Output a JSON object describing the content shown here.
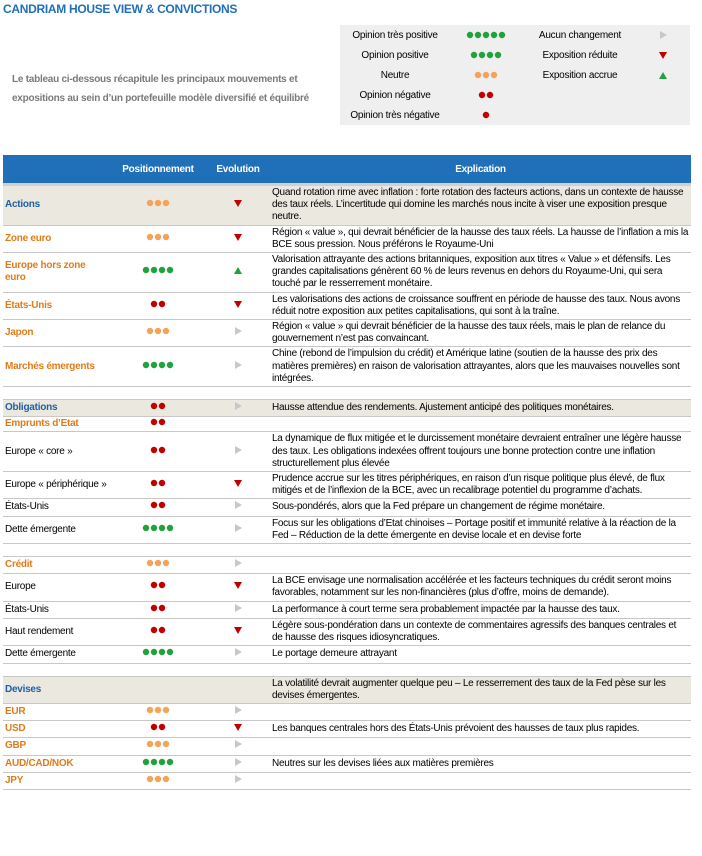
{
  "header": {
    "title": "CANDRIAM HOUSE VIEW & CONVICTIONS",
    "intro": "Le tableau ci-dessous récapitule les principaux mouvements et expositions au sein d’un portefeuille modèle diversifié et équilibré"
  },
  "legend": {
    "opinions": [
      {
        "label": "Opinion très positive",
        "dots": 5
      },
      {
        "label": "Opinion positive",
        "dots": 4
      },
      {
        "label": "Neutre",
        "dots": 3
      },
      {
        "label": "Opinion négative",
        "dots": 2
      },
      {
        "label": "Opinion très négative",
        "dots": 1
      }
    ],
    "changes": [
      {
        "label": "Aucun changement",
        "evolution": "right"
      },
      {
        "label": "Exposition réduite",
        "evolution": "down"
      },
      {
        "label": "Exposition accrue",
        "evolution": "up"
      }
    ]
  },
  "dot_colors": [
    "#c00000",
    "#c00000",
    "#f5a25a",
    "#1fa33a",
    "#1fa33a"
  ],
  "arrow_colors": {
    "right": "#c8c8c8",
    "down": "#c00000",
    "up": "#1fa33a"
  },
  "table": {
    "columns": [
      "Positionnement",
      "Evolution",
      "Explication"
    ],
    "rows": [
      {
        "kind": "section",
        "label": "Actions",
        "dots": 3,
        "evolution": "down",
        "explanation": "Quand rotation rime avec inflation : forte rotation des facteurs actions, dans un contexte de hausse des taux réels. L’incertitude qui domine les marchés nous incite à viser une exposition presque neutre."
      },
      {
        "kind": "group",
        "label": "Zone euro",
        "dots": 3,
        "evolution": "down",
        "explanation": "Région « value », qui devrait bénéficier de la hausse des taux réels. La hausse de l’inflation a mis la BCE sous pression. Nous préférons le Royaume-Uni"
      },
      {
        "kind": "group",
        "label": "Europe hors zone euro",
        "dots": 4,
        "evolution": "up",
        "explanation": "Valorisation attrayante des actions britanniques, exposition aux titres « Value » et défensifs. Les grandes capitalisations génèrent 60 % de leurs revenus en dehors du Royaume-Uni, qui sera touché par le resserrement monétaire."
      },
      {
        "kind": "group",
        "label": "États-Unis",
        "dots": 2,
        "evolution": "down",
        "explanation": "Les valorisations des actions de croissance souffrent en période de hausse des taux. Nous avons réduit notre exposition aux petites capitalisations, qui sont à la traîne."
      },
      {
        "kind": "group",
        "label": "Japon",
        "dots": 3,
        "evolution": "right",
        "explanation": "Région « value » qui devrait bénéficier de la hausse des taux réels, mais le plan de relance du gouvernement n’est pas convaincant."
      },
      {
        "kind": "group",
        "label": "Marchés émergents",
        "dots": 4,
        "evolution": "right",
        "explanation": "Chine (rebond de l’impulsion du crédit) et Amérique latine (soutien de la hausse des prix des matières premières) en raison de valorisation attrayantes, alors que les mauvaises nouvelles sont intégrées."
      },
      {
        "kind": "section",
        "label": "Obligations",
        "dots": 2,
        "evolution": "right",
        "explanation": "Hausse attendue des rendements. Ajustement anticipé des politiques monétaires."
      },
      {
        "kind": "group",
        "label": "Emprunts d’Etat",
        "dots": 2
      },
      {
        "kind": "item",
        "label": "Europe « core »",
        "dots": 2,
        "evolution": "right",
        "explanation": "La dynamique de flux mitigée et le durcissement monétaire devraient entraîner une légère hausse des taux. Les obligations indexées offrent toujours une bonne protection contre une inflation structurellement plus élevée"
      },
      {
        "kind": "item",
        "label": "Europe « périphérique »",
        "dots": 2,
        "evolution": "down",
        "explanation": "Prudence accrue sur les titres périphériques, en raison d’un risque politique plus élevé, de flux mitigés et de l’inflexion de la BCE, avec un recalibrage potentiel du programme d’achats."
      },
      {
        "kind": "item",
        "label": "États-Unis",
        "dots": 2,
        "evolution": "right",
        "explanation": "Sous-pondérés, alors que la Fed prépare un changement de régime monétaire."
      },
      {
        "kind": "item",
        "label": "Dette émergente",
        "dots": 4,
        "evolution": "right",
        "explanation": "Focus sur les obligations d’Etat chinoises – Portage positif et immunité relative à la réaction de la Fed – Réduction de la dette émergente en devise locale et en devise forte"
      },
      {
        "kind": "group",
        "label": "Crédit",
        "dots": 3,
        "evolution": "right"
      },
      {
        "kind": "item",
        "label": "Europe",
        "dots": 2,
        "evolution": "down",
        "explanation": "La BCE envisage une normalisation accélérée et les facteurs techniques du crédit seront moins favorables, notamment sur les non-financières (plus d’offre, moins de demande)."
      },
      {
        "kind": "item",
        "label": "États-Unis",
        "dots": 2,
        "evolution": "right",
        "explanation": "La performance à court terme sera probablement impactée par la hausse des taux."
      },
      {
        "kind": "item",
        "label": "Haut rendement",
        "dots": 2,
        "evolution": "down",
        "explanation": "Légère sous-pondération dans un contexte de commentaires agressifs des banques centrales et de hausse des risques idiosyncratiques."
      },
      {
        "kind": "item",
        "label": "Dette émergente",
        "dots": 4,
        "evolution": "right",
        "explanation": "Le portage demeure attrayant"
      },
      {
        "kind": "section",
        "label": "Devises",
        "explanation": "La volatilité devrait augmenter quelque peu – Le resserrement des taux de la Fed pèse sur les devises émergentes."
      },
      {
        "kind": "group",
        "label": "EUR",
        "dots": 3,
        "evolution": "right"
      },
      {
        "kind": "group",
        "label": "USD",
        "dots": 2,
        "evolution": "down",
        "explanation": "Les banques centrales hors des États-Unis prévoient des hausses de taux plus rapides."
      },
      {
        "kind": "group",
        "label": "GBP",
        "dots": 3,
        "evolution": "right"
      },
      {
        "kind": "group",
        "label": "AUD/CAD/NOK",
        "dots": 4,
        "evolution": "right",
        "explanation": "Neutres sur les devises liées aux matières premières"
      },
      {
        "kind": "group",
        "label": "JPY",
        "dots": 3,
        "evolution": "right"
      }
    ]
  }
}
